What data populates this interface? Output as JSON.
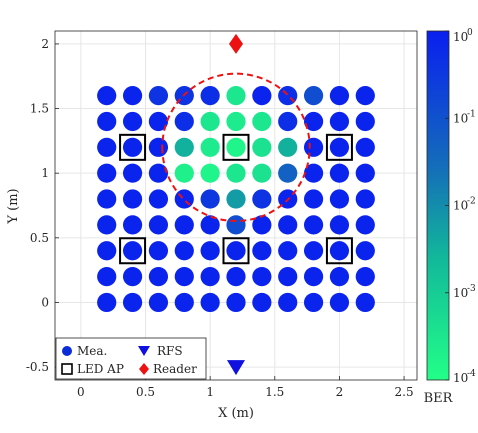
{
  "chart_data": {
    "type": "scatter",
    "xlabel": "X (m)",
    "ylabel": "Y (m)",
    "xlim": [
      -0.2,
      2.6
    ],
    "ylim": [
      -0.6,
      2.1
    ],
    "xticks": [
      0,
      0.5,
      1,
      1.5,
      2,
      2.5
    ],
    "xtick_labels": [
      "0",
      "0.5",
      "1",
      "1.5",
      "2",
      "2.5"
    ],
    "yticks": [
      -0.5,
      0,
      0.5,
      1,
      1.5,
      2
    ],
    "ytick_labels": [
      "-0.5",
      "0",
      "0.5",
      "1",
      "1.5",
      "2"
    ],
    "grid": true,
    "legend_position": "bottom-left",
    "legend": [
      {
        "label": "Mea.",
        "marker": "circle",
        "color": "#0a2bd8"
      },
      {
        "label": "RFS",
        "marker": "triangle-down",
        "color": "#1010e0"
      },
      {
        "label": "LED AP",
        "marker": "square",
        "color": "#000000"
      },
      {
        "label": "Reader",
        "marker": "diamond",
        "color": "#ee1111"
      }
    ],
    "measurement_x": [
      0.2,
      0.4,
      0.6,
      0.8,
      1.0,
      1.2,
      1.4,
      1.6,
      1.8,
      2.0,
      2.2
    ],
    "measurement_y": [
      1.6,
      1.4,
      1.2,
      1.0,
      0.8,
      0.6,
      0.4,
      0.2,
      0.0
    ],
    "ber_log10_rows": [
      [
        -0.1,
        -0.1,
        -0.4,
        -0.4,
        -0.3,
        -3.5,
        -0.1,
        -0.3,
        -0.9,
        -0.1,
        -0.1
      ],
      [
        -0.1,
        -0.1,
        -0.1,
        -0.3,
        -3.5,
        -3.6,
        -3.5,
        -0.3,
        -0.1,
        -0.1,
        -0.1
      ],
      [
        -0.1,
        -0.1,
        -0.1,
        -2.5,
        -3.6,
        -3.8,
        -3.4,
        -2.5,
        -0.1,
        -0.1,
        -0.1
      ],
      [
        -0.1,
        -0.1,
        -0.1,
        -3.7,
        -3.8,
        -3.5,
        -3.4,
        -1.3,
        -0.1,
        -0.1,
        -0.1
      ],
      [
        -0.1,
        -0.1,
        -0.1,
        -0.1,
        -0.5,
        -2.2,
        -0.4,
        -0.1,
        -0.1,
        -0.1,
        -0.1
      ],
      [
        -0.1,
        -0.1,
        -0.1,
        -0.1,
        -0.1,
        -0.9,
        -0.1,
        -0.1,
        -0.1,
        -0.1,
        -0.1
      ],
      [
        -0.1,
        -0.1,
        -0.1,
        -0.1,
        -0.1,
        -0.1,
        -0.1,
        -0.1,
        -0.1,
        -0.1,
        -0.1
      ],
      [
        -0.1,
        -0.1,
        -0.1,
        -0.1,
        -0.1,
        -0.1,
        -0.1,
        -0.1,
        -0.1,
        -0.1,
        -0.1
      ],
      [
        -0.1,
        -0.1,
        -0.1,
        -0.1,
        -0.1,
        -0.1,
        -0.1,
        -0.1,
        -0.1,
        -0.1,
        -0.1
      ]
    ],
    "led_ap": [
      {
        "x": 0.4,
        "y": 1.2
      },
      {
        "x": 1.2,
        "y": 1.2
      },
      {
        "x": 2.0,
        "y": 1.2
      },
      {
        "x": 0.4,
        "y": 0.4
      },
      {
        "x": 1.2,
        "y": 0.4
      },
      {
        "x": 2.0,
        "y": 0.4
      }
    ],
    "reader": {
      "x": 1.2,
      "y": 2.0
    },
    "rfs": {
      "x": 1.2,
      "y": -0.5
    },
    "coverage_circle": {
      "cx": 1.2,
      "cy": 1.2,
      "r": 0.57,
      "color": "#ee1111",
      "style": "dashed"
    },
    "colorbar": {
      "label": "BER",
      "scale": "log",
      "range_log10": [
        -4,
        0
      ],
      "tick_bases": [
        "10",
        "10",
        "10",
        "10",
        "10"
      ],
      "tick_exponents": [
        "0",
        "-1",
        "-2",
        "-3",
        "-4"
      ],
      "tick_values_log10": [
        0,
        -1,
        -2,
        -3,
        -4
      ],
      "color_low": "#22ff88",
      "color_high": "#0a1ff0"
    }
  }
}
